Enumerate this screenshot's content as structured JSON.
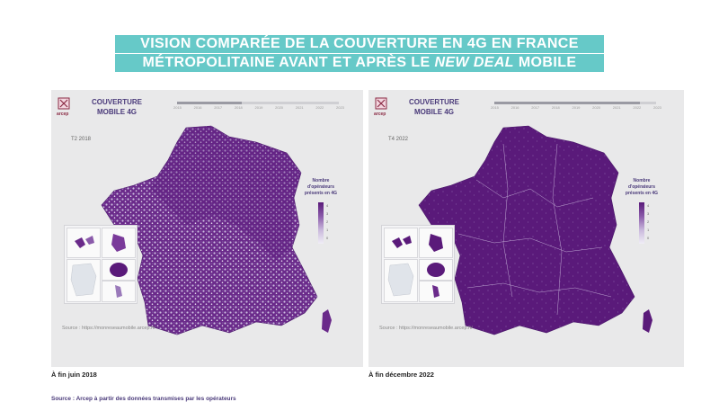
{
  "title": {
    "line1": "VISION COMPARÉE DE LA COUVERTURE EN 4G EN FRANCE",
    "line2_prefix": "MÉTROPOLITAINE AVANT ET APRÈS LE ",
    "line2_em": "NEW DEAL",
    "line2_suffix": " MOBILE"
  },
  "maps": [
    {
      "logo_text": "arcep",
      "map_title": "COUVERTURE MOBILE 4G",
      "timeline_years": [
        "2015",
        "2016",
        "2017",
        "2018",
        "2019",
        "2020",
        "2021",
        "2022",
        "2023"
      ],
      "timeline_progress": 0.4,
      "period": "T2 2018",
      "legend_title": "Nombre d'opérateurs présents en 4G",
      "legend_ticks": [
        "4",
        "3",
        "2",
        "1",
        "0"
      ],
      "source_url": "Source : https://monreseaumobile.arcep.fr/",
      "caption": "À fin juin 2018"
    },
    {
      "logo_text": "arcep",
      "map_title": "COUVERTURE MOBILE 4G",
      "timeline_years": [
        "2015",
        "2016",
        "2017",
        "2018",
        "2019",
        "2020",
        "2021",
        "2022",
        "2023"
      ],
      "timeline_progress": 0.9,
      "period": "T4 2022",
      "legend_title": "Nombre d'opérateurs présents en 4G",
      "legend_ticks": [
        "4",
        "3",
        "2",
        "1",
        "0"
      ],
      "source_url": "Source : https://monreseaumobile.arcep.fr/",
      "caption": "À fin décembre 2022"
    }
  ],
  "source": "Source : Arcep à partir des données transmises par les opérateurs",
  "colors": {
    "title_band": "#66c9c8",
    "coverage_high": "#5a1a7a",
    "coverage_low": "#f0eef6",
    "background": "#e9e9ea"
  }
}
